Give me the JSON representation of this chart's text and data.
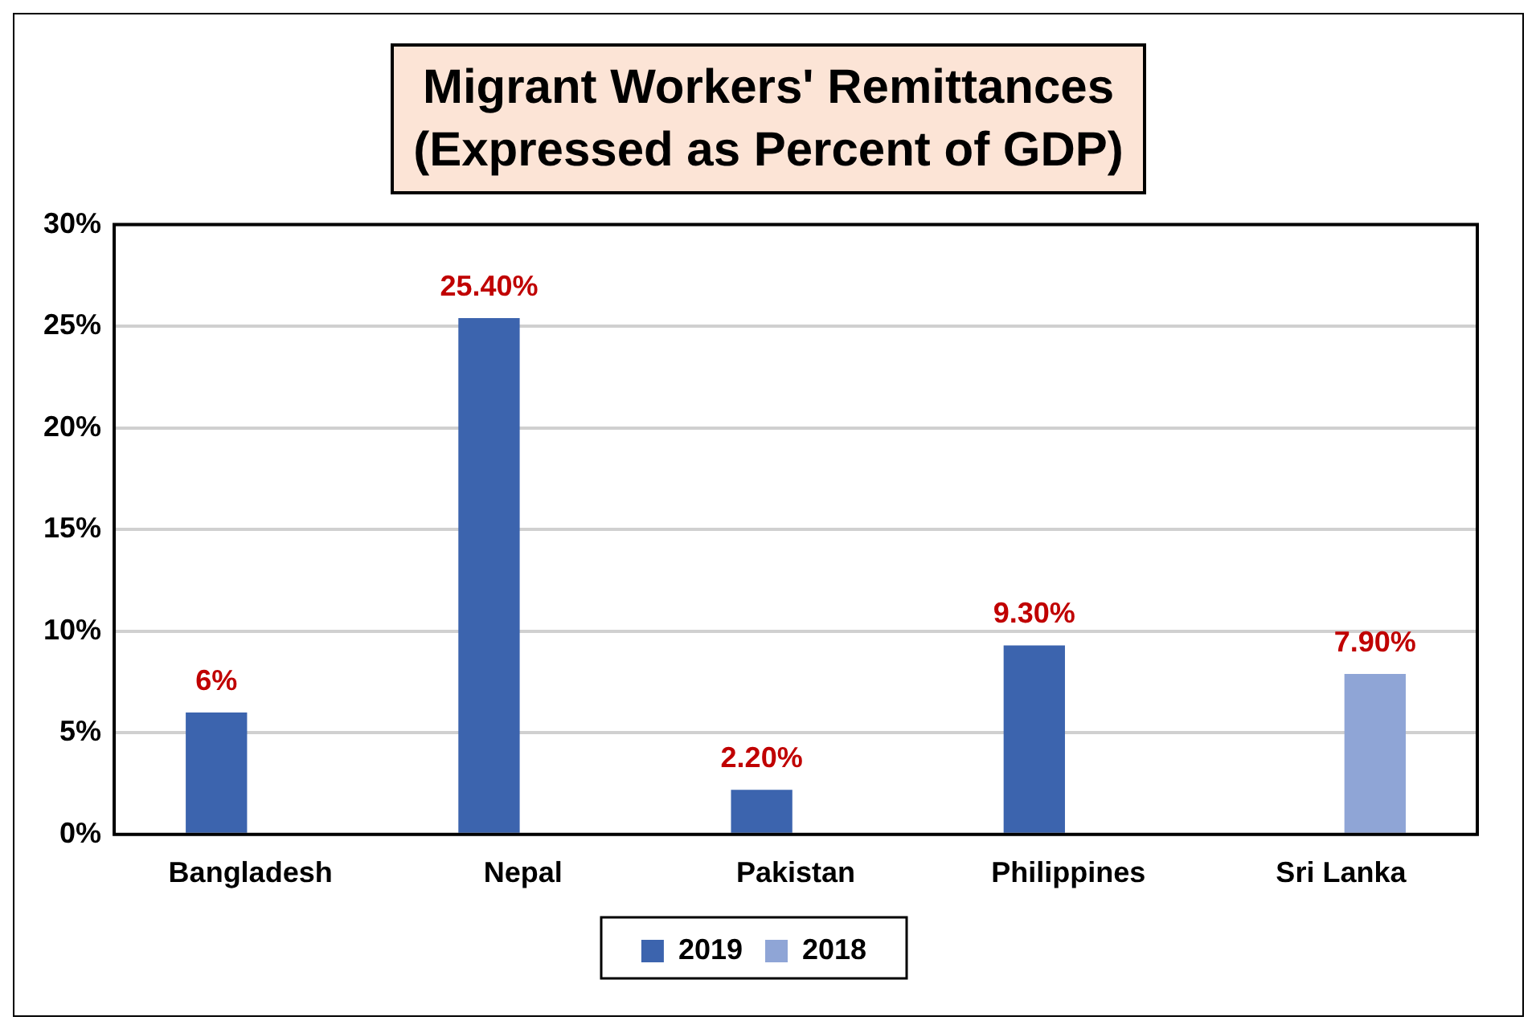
{
  "chart_data": {
    "type": "bar",
    "title": "Migrant Workers' Remittances\n(Expressed as Percent of GDP)",
    "categories": [
      "Bangladesh",
      "Nepal",
      "Pakistan",
      "Philippines",
      "Sri Lanka"
    ],
    "series": [
      {
        "name": "2019",
        "color": "#3c64ae",
        "values": [
          6,
          25.4,
          2.2,
          9.3,
          null
        ],
        "value_labels": [
          "6%",
          "25.40%",
          "2.20%",
          "9.30%",
          null
        ]
      },
      {
        "name": "2018",
        "color": "#8fa5d6",
        "values": [
          null,
          null,
          null,
          null,
          7.9
        ],
        "value_labels": [
          null,
          null,
          null,
          null,
          "7.90%"
        ]
      }
    ],
    "ylim": [
      0,
      30
    ],
    "yticks": [
      {
        "value": 0,
        "label": "0%"
      },
      {
        "value": 5,
        "label": "5%"
      },
      {
        "value": 10,
        "label": "10%"
      },
      {
        "value": 15,
        "label": "15%"
      },
      {
        "value": 20,
        "label": "20%"
      },
      {
        "value": 25,
        "label": "25%"
      },
      {
        "value": 30,
        "label": "30%"
      }
    ],
    "grid": "y",
    "legend": "bottom"
  }
}
